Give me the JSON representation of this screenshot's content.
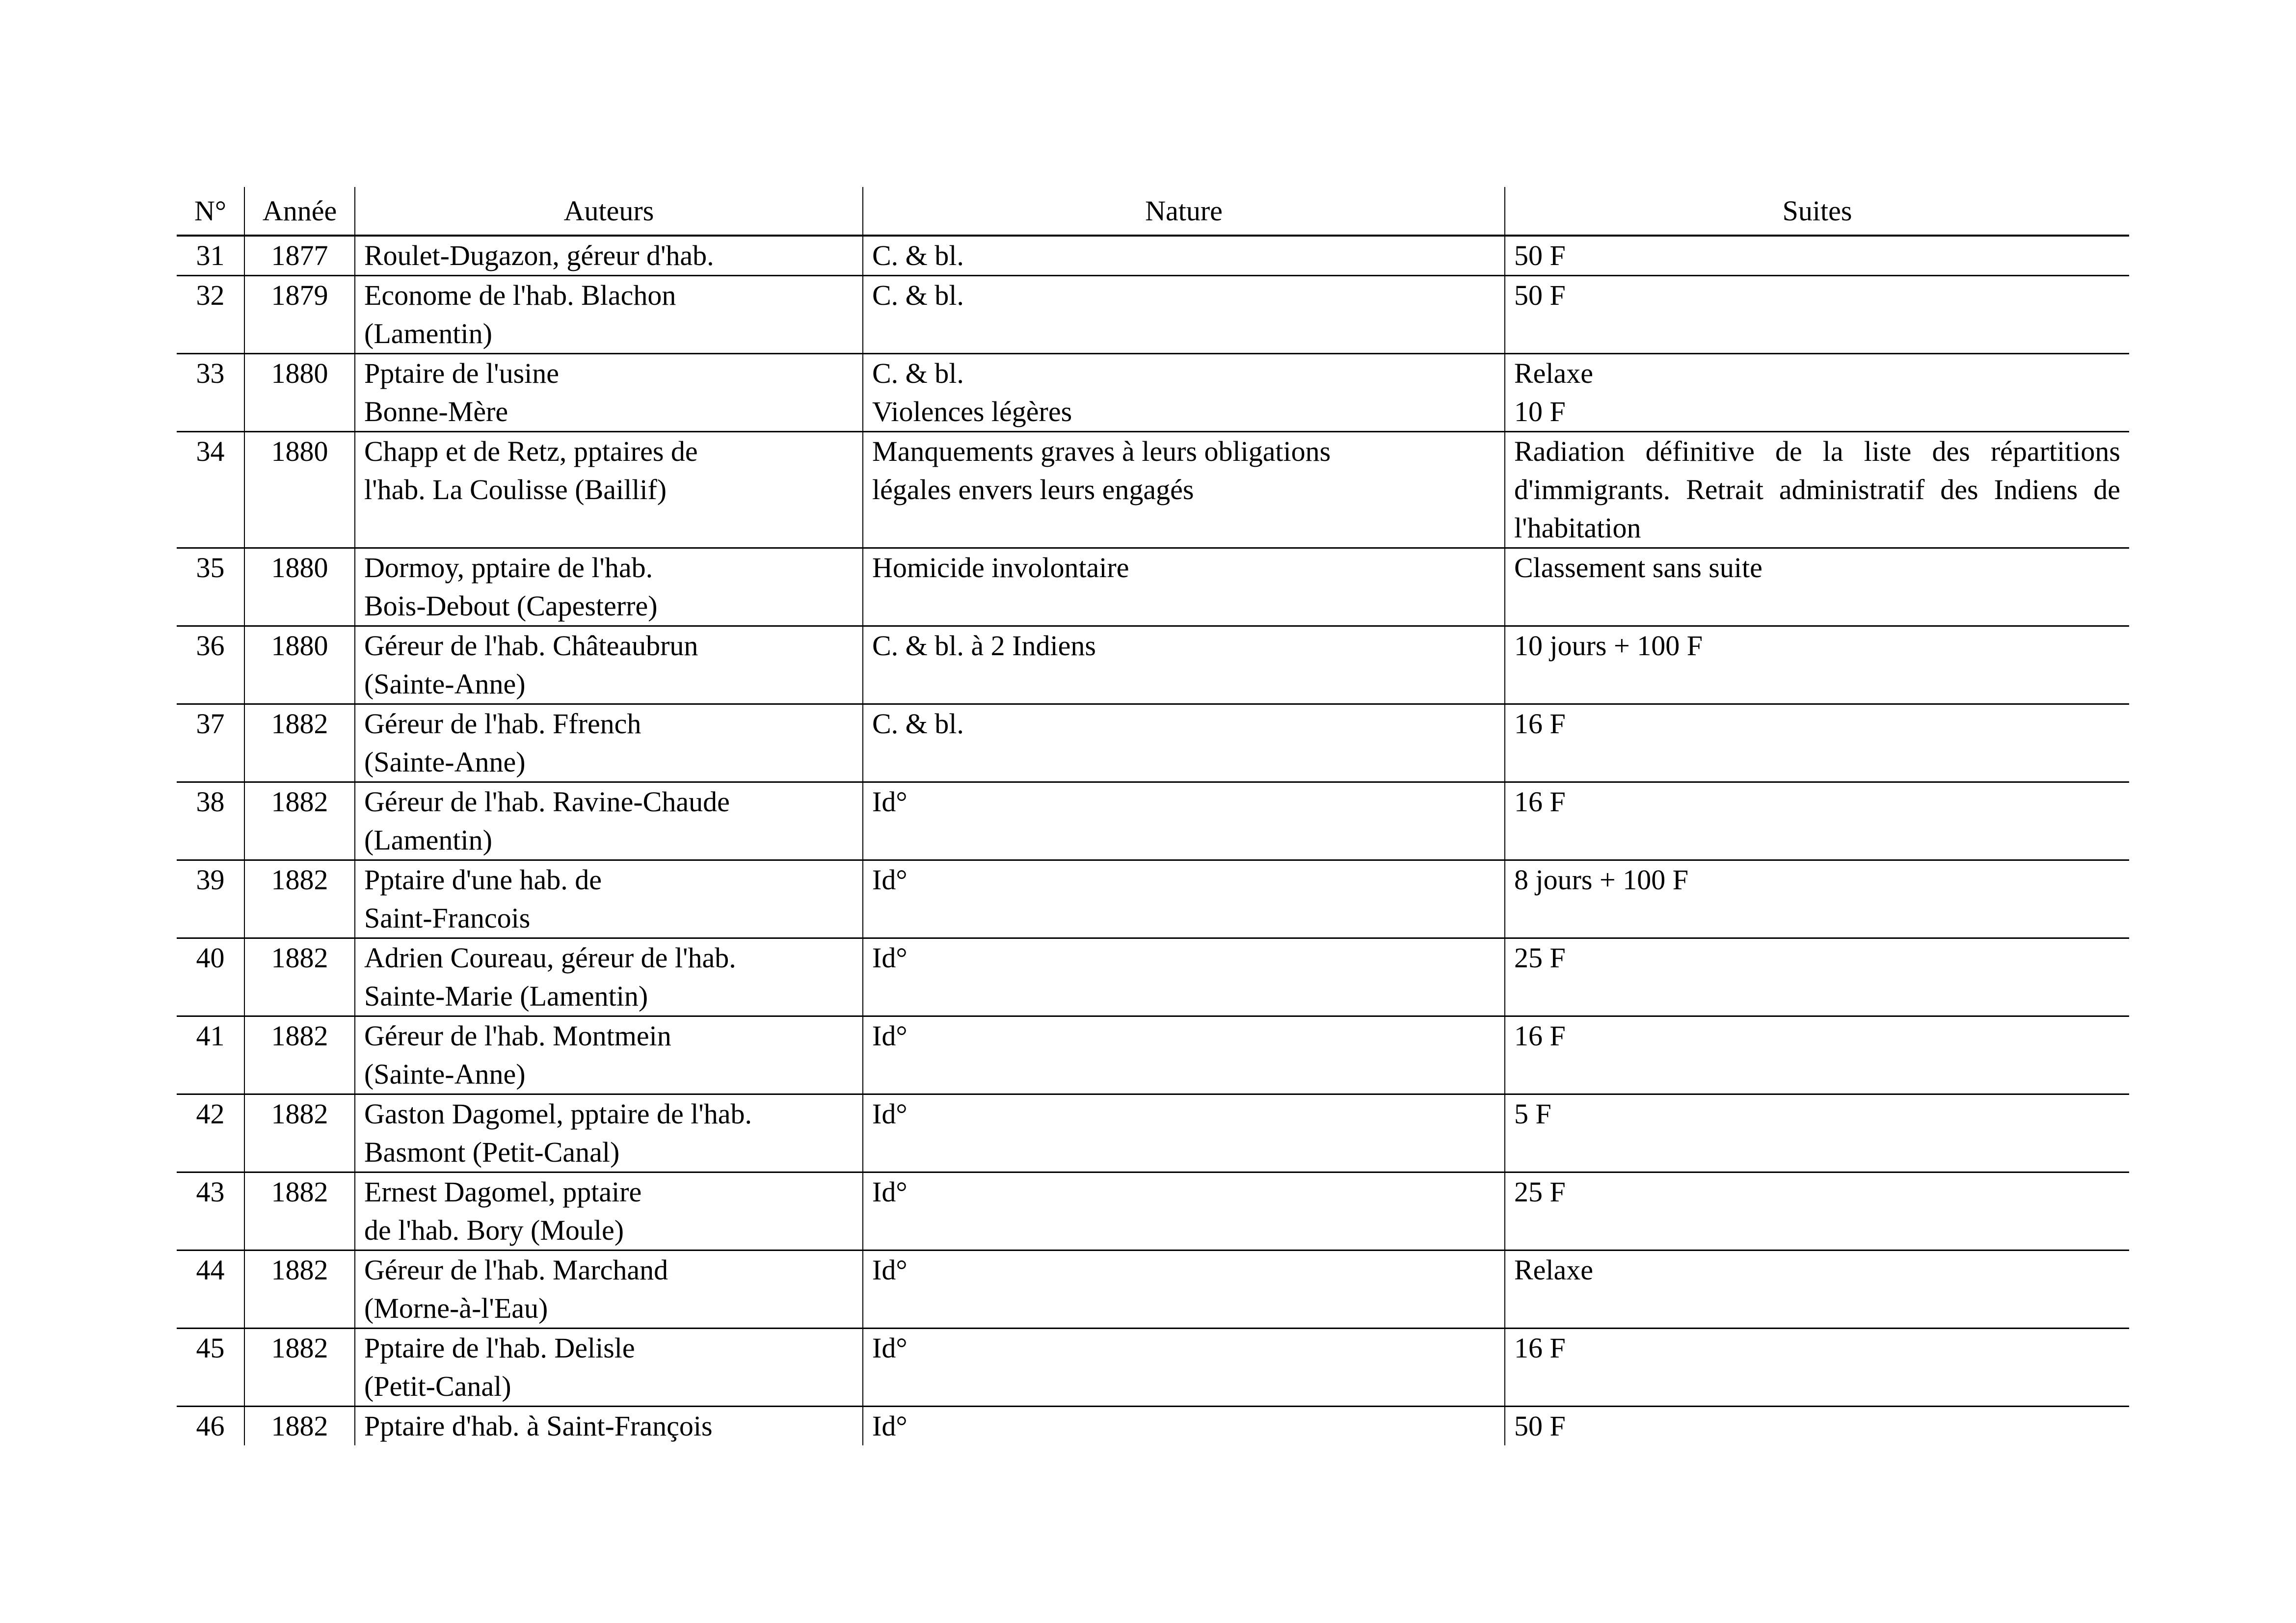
{
  "headers": [
    "N°",
    "Année",
    "Auteurs",
    "Nature",
    "Suites"
  ],
  "rows": [
    {
      "no": "31",
      "annee": "1877",
      "auteurs": [
        "Roulet-Dugazon, géreur d'hab."
      ],
      "nature": [
        "C. & bl."
      ],
      "suites": [
        "50 F"
      ]
    },
    {
      "no": "32",
      "annee": "1879",
      "auteurs": [
        "Econome de l'hab. Blachon",
        "(Lamentin)"
      ],
      "nature": [
        "C. & bl."
      ],
      "suites": [
        "50 F"
      ]
    },
    {
      "no": "33",
      "annee": "1880",
      "auteurs": [
        "Pptaire de l'usine",
        "Bonne-Mère"
      ],
      "nature": [
        "C. & bl.",
        "Violences légères"
      ],
      "suites": [
        "Relaxe",
        "10 F"
      ]
    },
    {
      "no": "34",
      "annee": "1880",
      "auteurs": [
        "Chapp et de Retz, pptaires de",
        "l'hab. La Coulisse (Baillif)"
      ],
      "nature": [
        "Manquements graves à leurs obligations",
        "légales envers leurs engagés"
      ],
      "suites": [
        "Radiation définitive de la liste des répartitions d'immigrants. Retrait administratif des Indiens de l'habitation"
      ]
    },
    {
      "no": "35",
      "annee": "1880",
      "auteurs": [
        "Dormoy, pptaire de l'hab.",
        "Bois-Debout (Capesterre)"
      ],
      "nature": [
        "Homicide involontaire"
      ],
      "suites": [
        "Classement sans suite"
      ]
    },
    {
      "no": "36",
      "annee": "1880",
      "auteurs": [
        "Géreur de l'hab. Châteaubrun",
        "(Sainte-Anne)"
      ],
      "nature": [
        "C. & bl. à 2 Indiens"
      ],
      "suites": [
        "10 jours + 100 F"
      ]
    },
    {
      "no": "37",
      "annee": "1882",
      "auteurs": [
        "Géreur de l'hab. Ffrench",
        "(Sainte-Anne)"
      ],
      "nature": [
        "C. & bl."
      ],
      "suites": [
        "16 F"
      ]
    },
    {
      "no": "38",
      "annee": "1882",
      "auteurs": [
        "Géreur de l'hab. Ravine-Chaude",
        "(Lamentin)"
      ],
      "nature": [
        "Id°"
      ],
      "suites": [
        "16 F"
      ]
    },
    {
      "no": "39",
      "annee": "1882",
      "auteurs": [
        "Pptaire d'une hab. de",
        "Saint-Francois"
      ],
      "nature": [
        "Id°"
      ],
      "suites": [
        "8 jours + 100 F"
      ]
    },
    {
      "no": "40",
      "annee": "1882",
      "auteurs": [
        "Adrien Coureau, géreur de l'hab.",
        "Sainte-Marie (Lamentin)"
      ],
      "nature": [
        "Id°"
      ],
      "suites": [
        "25 F"
      ]
    },
    {
      "no": "41",
      "annee": "1882",
      "auteurs": [
        "Géreur de l'hab. Montmein",
        "(Sainte-Anne)"
      ],
      "nature": [
        "Id°"
      ],
      "suites": [
        "16 F"
      ]
    },
    {
      "no": "42",
      "annee": "1882",
      "auteurs": [
        "Gaston Dagomel, pptaire de l'hab.",
        "Basmont (Petit-Canal)"
      ],
      "nature": [
        "Id°"
      ],
      "suites": [
        "5 F"
      ]
    },
    {
      "no": "43",
      "annee": "1882",
      "auteurs": [
        "Ernest Dagomel, pptaire",
        "de l'hab. Bory (Moule)"
      ],
      "nature": [
        "Id°"
      ],
      "suites": [
        "25 F"
      ]
    },
    {
      "no": "44",
      "annee": "1882",
      "auteurs": [
        "Géreur de l'hab. Marchand",
        "(Morne-à-l'Eau)"
      ],
      "nature": [
        "Id°"
      ],
      "suites": [
        "Relaxe"
      ]
    },
    {
      "no": "45",
      "annee": "1882",
      "auteurs": [
        "Pptaire de l'hab. Delisle",
        "(Petit-Canal)"
      ],
      "nature": [
        "Id°"
      ],
      "suites": [
        "16 F"
      ]
    },
    {
      "no": "46",
      "annee": "1882",
      "auteurs": [
        "Pptaire d'hab. à Saint-François"
      ],
      "nature": [
        "Id°"
      ],
      "suites": [
        "50 F"
      ]
    }
  ]
}
